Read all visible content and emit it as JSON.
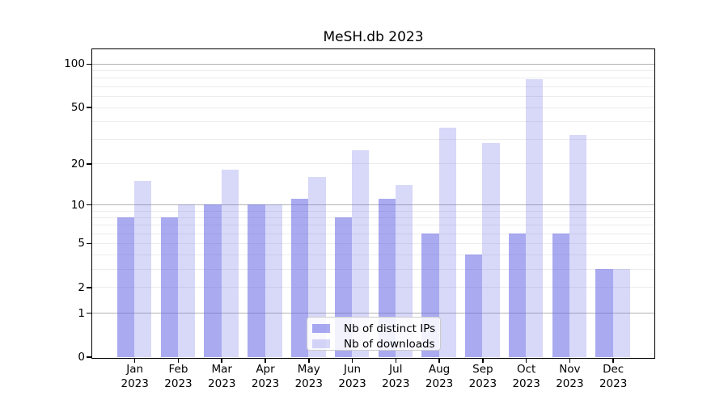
{
  "chart_data": {
    "type": "bar",
    "title": "MeSH.db 2023",
    "categories": [
      "Jan 2023",
      "Feb 2023",
      "Mar 2023",
      "Apr 2023",
      "May 2023",
      "Jun 2023",
      "Jul 2023",
      "Aug 2023",
      "Sep 2023",
      "Oct 2023",
      "Nov 2023",
      "Dec 2023"
    ],
    "month_labels": [
      "Jan",
      "Feb",
      "Mar",
      "Apr",
      "May",
      "Jun",
      "Jul",
      "Aug",
      "Sep",
      "Oct",
      "Nov",
      "Dec"
    ],
    "year_label": "2023",
    "series": [
      {
        "name": "Nb of distinct IPs",
        "values": [
          8,
          8,
          10,
          10,
          11,
          8,
          11,
          6,
          4,
          6,
          6,
          3
        ],
        "color": "rgba(100,100,230,0.55)"
      },
      {
        "name": "Nb of downloads",
        "values": [
          15,
          10,
          18,
          10,
          16,
          25,
          14,
          36,
          28,
          78,
          32,
          3
        ],
        "color": "rgba(100,100,230,0.25)"
      }
    ],
    "yscale": "symlog(log1p)",
    "ylim": [
      0,
      128
    ],
    "yticks": [
      0,
      1,
      2,
      5,
      10,
      20,
      50,
      100
    ],
    "ytick_labels": [
      "0",
      "1",
      "2",
      "5",
      "10",
      "20",
      "50",
      "100"
    ],
    "major_gridlines": [
      1,
      10,
      100
    ],
    "minor_gridlines": [
      2,
      3,
      4,
      5,
      6,
      7,
      8,
      9,
      20,
      30,
      40,
      50,
      60,
      70,
      80,
      90
    ],
    "grid": "on",
    "legend_position": "lower center inside",
    "colors": {
      "ips_bar_solid": "#a8a8ef",
      "downloads_bar_solid": "#dcdcf8",
      "major_grid": "#b3b3b3",
      "minor_grid": "#ececec",
      "axis": "#000000",
      "legend_border": "#cbcbcb"
    }
  }
}
